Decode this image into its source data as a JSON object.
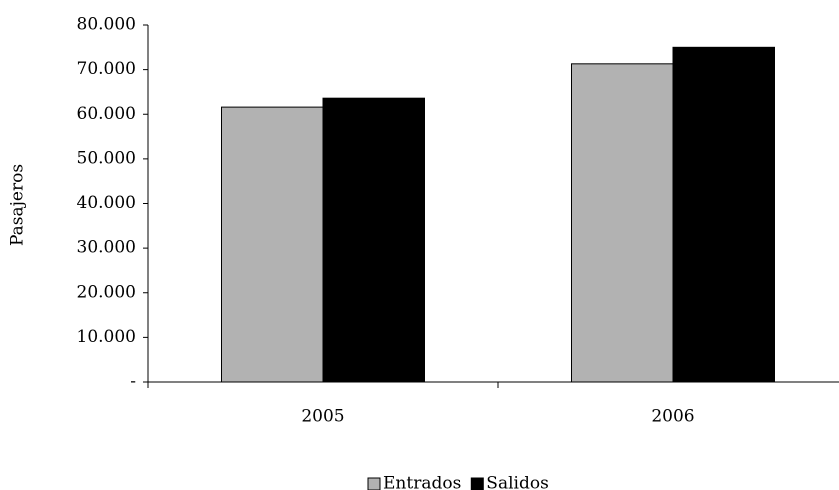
{
  "chart_data": {
    "type": "bar",
    "y_label": "Pasajeros",
    "categories": [
      "2005",
      "2006"
    ],
    "series": [
      {
        "name": "Entrados",
        "color": "#b2b2b2",
        "values": [
          61600,
          71300
        ]
      },
      {
        "name": "Salidos",
        "color": "#000000",
        "values": [
          63600,
          75000
        ]
      }
    ],
    "ylim": [
      0,
      80000
    ],
    "yticks": [
      {
        "value": 0,
        "label": "-"
      },
      {
        "value": 10000,
        "label": "10.000"
      },
      {
        "value": 20000,
        "label": "20.000"
      },
      {
        "value": 30000,
        "label": "30.000"
      },
      {
        "value": 40000,
        "label": "40.000"
      },
      {
        "value": 50000,
        "label": "50.000"
      },
      {
        "value": 60000,
        "label": "60.000"
      },
      {
        "value": 70000,
        "label": "70.000"
      },
      {
        "value": 80000,
        "label": "80.000"
      }
    ],
    "grid": false,
    "legend": "bottom"
  }
}
